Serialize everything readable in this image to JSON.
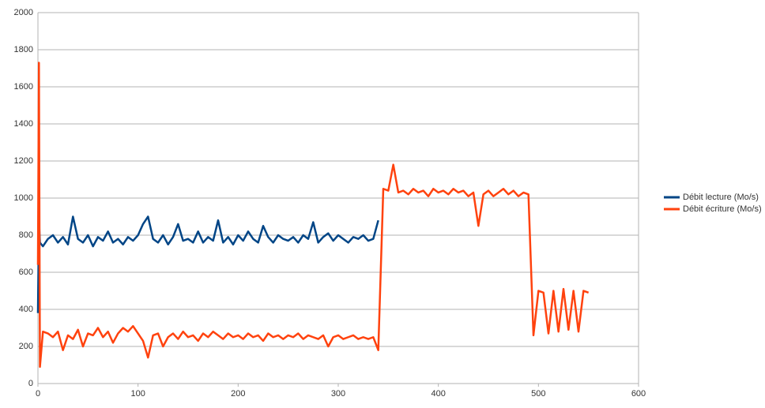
{
  "chart_data": {
    "type": "line",
    "x": [
      0,
      1,
      2,
      5,
      10,
      15,
      20,
      25,
      30,
      35,
      40,
      45,
      50,
      55,
      60,
      65,
      70,
      75,
      80,
      85,
      90,
      95,
      100,
      105,
      110,
      115,
      120,
      125,
      130,
      135,
      140,
      145,
      150,
      155,
      160,
      165,
      170,
      175,
      180,
      185,
      190,
      195,
      200,
      205,
      210,
      215,
      220,
      225,
      230,
      235,
      240,
      245,
      250,
      255,
      260,
      265,
      270,
      275,
      280,
      285,
      290,
      295,
      300,
      305,
      310,
      315,
      320,
      325,
      330,
      335,
      340,
      345,
      350,
      355,
      360,
      365,
      370,
      375,
      380,
      385,
      390,
      395,
      400,
      405,
      410,
      415,
      420,
      425,
      430,
      435,
      440,
      445,
      450,
      455,
      460,
      465,
      470,
      475,
      480,
      485,
      490,
      495,
      500,
      505,
      510,
      515,
      520,
      525,
      530,
      535,
      540,
      545,
      550
    ],
    "series": [
      {
        "name": "Débit lecture (Mo/s)",
        "color": "#004586",
        "values": [
          380,
          880,
          760,
          740,
          780,
          800,
          760,
          790,
          750,
          900,
          780,
          760,
          800,
          740,
          790,
          770,
          820,
          760,
          780,
          750,
          790,
          770,
          800,
          860,
          900,
          780,
          760,
          800,
          750,
          790,
          860,
          770,
          780,
          760,
          820,
          760,
          790,
          770,
          880,
          760,
          790,
          750,
          800,
          770,
          820,
          780,
          760,
          850,
          790,
          760,
          800,
          780,
          770,
          790,
          760,
          800,
          780,
          870,
          760,
          790,
          810,
          770,
          800,
          780,
          760,
          790,
          780,
          800,
          770,
          780,
          880,
          null,
          null,
          null,
          null,
          null,
          null,
          null,
          null,
          null,
          null,
          null,
          null,
          null,
          null,
          null,
          null,
          null,
          null,
          null,
          null,
          null,
          null,
          null,
          null,
          null,
          null,
          null,
          null,
          null,
          null,
          null,
          null,
          null,
          null,
          null,
          null,
          null,
          null,
          null,
          null,
          null,
          null
        ]
      },
      {
        "name": "Débit écriture (Mo/s)",
        "color": "#ff420e",
        "values": [
          640,
          1730,
          90,
          280,
          270,
          250,
          280,
          180,
          260,
          240,
          290,
          200,
          270,
          260,
          300,
          250,
          280,
          220,
          270,
          300,
          280,
          310,
          270,
          230,
          140,
          260,
          270,
          200,
          250,
          270,
          240,
          280,
          250,
          260,
          230,
          270,
          250,
          280,
          260,
          240,
          270,
          250,
          260,
          240,
          270,
          250,
          260,
          230,
          270,
          250,
          260,
          240,
          260,
          250,
          270,
          240,
          260,
          250,
          240,
          260,
          200,
          250,
          260,
          240,
          250,
          260,
          240,
          250,
          240,
          250,
          180,
          1050,
          1040,
          1180,
          1030,
          1040,
          1020,
          1050,
          1030,
          1040,
          1010,
          1050,
          1030,
          1040,
          1020,
          1050,
          1030,
          1040,
          1010,
          1030,
          850,
          1020,
          1040,
          1010,
          1030,
          1050,
          1020,
          1040,
          1010,
          1030,
          1020,
          260,
          500,
          490,
          270,
          500,
          280,
          510,
          290,
          500,
          280,
          500,
          490
        ]
      }
    ],
    "xlim": [
      0,
      600
    ],
    "xticks": [
      0,
      100,
      200,
      300,
      400,
      500,
      600
    ],
    "ylim": [
      0,
      2000
    ],
    "yticks": [
      0,
      200,
      400,
      600,
      800,
      1000,
      1200,
      1400,
      1600,
      1800,
      2000
    ],
    "grid": true,
    "legend": "right"
  }
}
